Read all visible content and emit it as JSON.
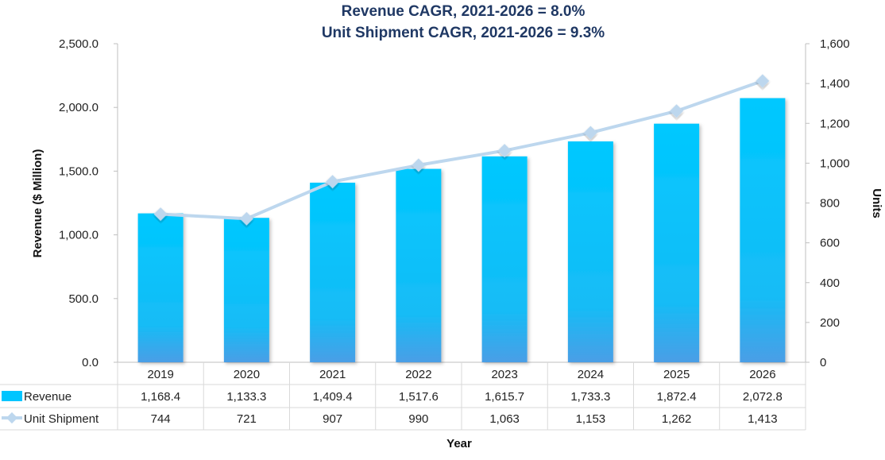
{
  "chart_data": {
    "type": "bar",
    "title_lines": [
      "Revenue CAGR, 2021-2026 = 8.0%",
      "Unit Shipment CAGR, 2021-2026 = 9.3%"
    ],
    "categories": [
      "2019",
      "2020",
      "2021",
      "2022",
      "2023",
      "2024",
      "2025",
      "2026"
    ],
    "series": [
      {
        "name": "Revenue",
        "type": "bar",
        "axis": "left",
        "color": "#00c5ff",
        "values": [
          1168.4,
          1133.3,
          1409.4,
          1517.6,
          1615.7,
          1733.3,
          1872.4,
          2072.8
        ],
        "display": [
          "1,168.4",
          "1,133.3",
          "1,409.4",
          "1,517.6",
          "1,615.7",
          "1,733.3",
          "1,872.4",
          "2,072.8"
        ]
      },
      {
        "name": "Unit Shipment",
        "type": "line",
        "axis": "right",
        "color": "#bdd7ee",
        "values": [
          744,
          721,
          907,
          990,
          1063,
          1153,
          1262,
          1413
        ],
        "display": [
          "744",
          "721",
          "907",
          "990",
          "1,063",
          "1,153",
          "1,262",
          "1,413"
        ]
      }
    ],
    "xlabel": "Year",
    "ylabel": "Revenue ($ Million)",
    "y2label": "Units",
    "ylim": [
      0,
      2500
    ],
    "y2lim": [
      0,
      1600
    ],
    "yticks": [
      "0.0",
      "500.0",
      "1,000.0",
      "1,500.0",
      "2,000.0",
      "2,500.0"
    ],
    "y2ticks": [
      "0",
      "200",
      "400",
      "600",
      "800",
      "1,000",
      "1,200",
      "1,400",
      "1,600"
    ],
    "grid": false,
    "legend": "data-table-left"
  }
}
